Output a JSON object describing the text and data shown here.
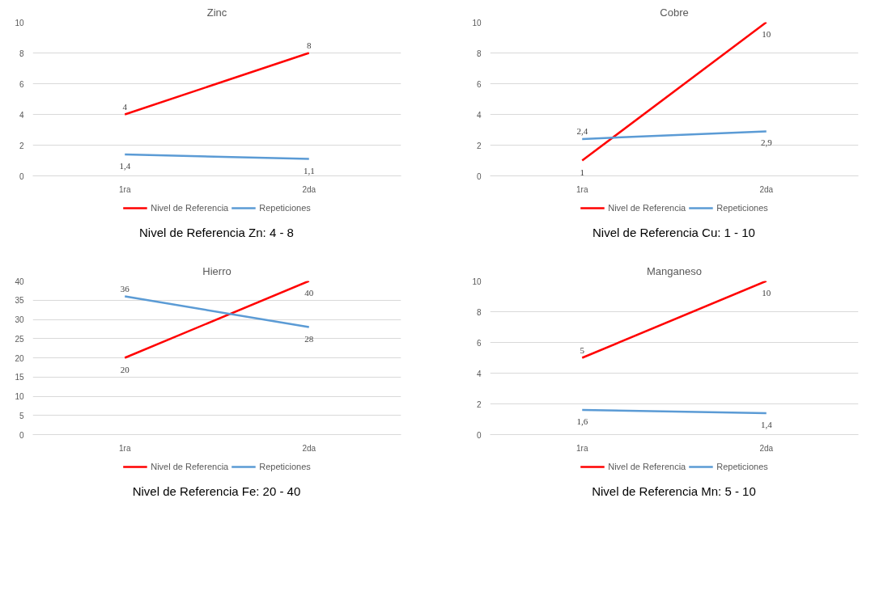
{
  "chart_data": [
    {
      "type": "line",
      "title": "Zinc",
      "categories": [
        "1ra",
        "2da"
      ],
      "ylim": [
        0,
        10
      ],
      "yticks": [
        0,
        2,
        4,
        6,
        8,
        10
      ],
      "grid": "y",
      "legend": "bottom",
      "annotations": [
        "Nivel de Referencia Zn: 4 - 8"
      ],
      "series": [
        {
          "name": "Nivel de Referencia",
          "color": "#ff0000",
          "values": [
            4,
            8
          ],
          "value_labels": [
            "4",
            "8"
          ]
        },
        {
          "name": "Repeticiones",
          "color": "#5b9bd5",
          "values": [
            1.4,
            1.1
          ],
          "value_labels": [
            "1,4",
            "1,1"
          ]
        }
      ]
    },
    {
      "type": "line",
      "title": "Cobre",
      "categories": [
        "1ra",
        "2da"
      ],
      "ylim": [
        0,
        10
      ],
      "yticks": [
        0,
        2,
        4,
        6,
        8,
        10
      ],
      "grid": "y",
      "legend": "bottom",
      "annotations": [
        "Nivel de Referencia Cu: 1 - 10"
      ],
      "series": [
        {
          "name": "Nivel de Referencia",
          "color": "#ff0000",
          "values": [
            1,
            10
          ],
          "value_labels": [
            "1",
            "10"
          ]
        },
        {
          "name": "Repeticiones",
          "color": "#5b9bd5",
          "values": [
            2.4,
            2.9
          ],
          "value_labels": [
            "2,4",
            "2,9"
          ]
        }
      ]
    },
    {
      "type": "line",
      "title": "Hierro",
      "categories": [
        "1ra",
        "2da"
      ],
      "ylim": [
        0,
        40
      ],
      "yticks": [
        0,
        5,
        10,
        15,
        20,
        25,
        30,
        35,
        40
      ],
      "grid": "y",
      "legend": "bottom",
      "annotations": [
        "Nivel de Referencia Fe: 20 - 40"
      ],
      "series": [
        {
          "name": "Nivel de Referencia",
          "color": "#ff0000",
          "values": [
            20,
            40
          ],
          "value_labels": [
            "20",
            "40"
          ]
        },
        {
          "name": "Repeticiones",
          "color": "#5b9bd5",
          "values": [
            36,
            28
          ],
          "value_labels": [
            "36",
            "28"
          ]
        }
      ]
    },
    {
      "type": "line",
      "title": "Manganeso",
      "categories": [
        "1ra",
        "2da"
      ],
      "ylim": [
        0,
        10
      ],
      "yticks": [
        0,
        2,
        4,
        6,
        8,
        10
      ],
      "grid": "y",
      "legend": "bottom",
      "annotations": [
        "Nivel de Referencia Mn: 5 - 10"
      ],
      "series": [
        {
          "name": "Nivel de Referencia",
          "color": "#ff0000",
          "values": [
            5,
            10
          ],
          "value_labels": [
            "5",
            "10"
          ]
        },
        {
          "name": "Repeticiones",
          "color": "#5b9bd5",
          "values": [
            1.6,
            1.4
          ],
          "value_labels": [
            "1,6",
            "1,4"
          ]
        }
      ]
    }
  ]
}
